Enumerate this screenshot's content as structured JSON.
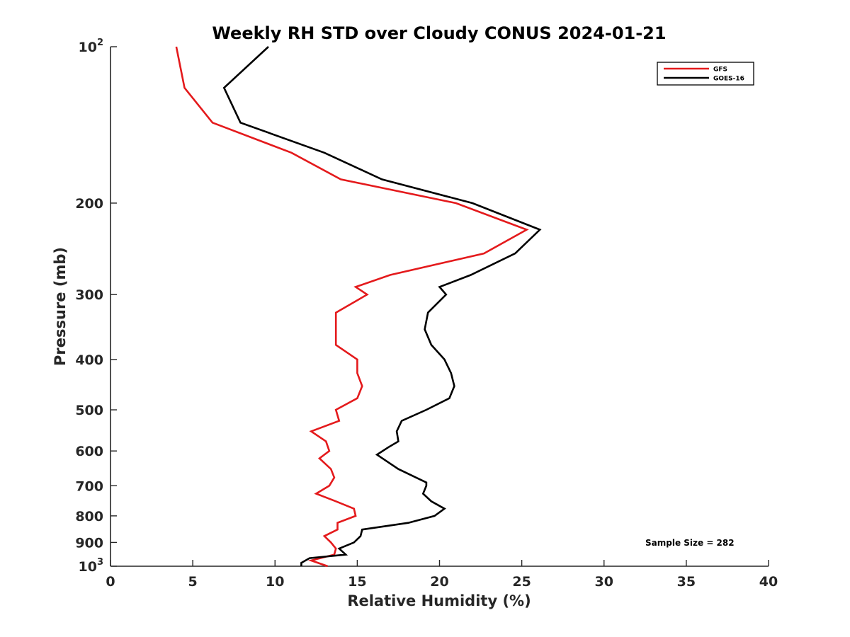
{
  "chart_data": {
    "type": "line",
    "title": "Weekly RH STD over Cloudy CONUS 2024-01-21",
    "xlabel": "Relative Humidity (%)",
    "ylabel": "Pressure (mb)",
    "xlim": [
      0,
      40
    ],
    "ylim": [
      100,
      1000
    ],
    "y_scale": "log",
    "y_reversed": true,
    "grid": false,
    "legend_position": "top-right",
    "x_ticks": [
      0,
      5,
      10,
      15,
      20,
      25,
      30,
      35,
      40
    ],
    "y_ticks": [
      {
        "value": 100,
        "label": "10",
        "sup": "2"
      },
      {
        "value": 200,
        "label": "200",
        "sup": ""
      },
      {
        "value": 300,
        "label": "300",
        "sup": ""
      },
      {
        "value": 400,
        "label": "400",
        "sup": ""
      },
      {
        "value": 500,
        "label": "500",
        "sup": ""
      },
      {
        "value": 600,
        "label": "600",
        "sup": ""
      },
      {
        "value": 700,
        "label": "700",
        "sup": ""
      },
      {
        "value": 800,
        "label": "800",
        "sup": ""
      },
      {
        "value": 900,
        "label": "900",
        "sup": ""
      },
      {
        "value": 1000,
        "label": "10",
        "sup": "3"
      }
    ],
    "series": [
      {
        "name": "GFS",
        "color": "#e41a1c",
        "points": [
          [
            4.0,
            100
          ],
          [
            4.5,
            120
          ],
          [
            6.2,
            140
          ],
          [
            11.0,
            160
          ],
          [
            14.0,
            180
          ],
          [
            21.0,
            200
          ],
          [
            25.3,
            225
          ],
          [
            22.7,
            250
          ],
          [
            17.0,
            275
          ],
          [
            14.9,
            290
          ],
          [
            15.6,
            300
          ],
          [
            13.7,
            325
          ],
          [
            13.7,
            350
          ],
          [
            13.7,
            375
          ],
          [
            15.0,
            400
          ],
          [
            15.0,
            425
          ],
          [
            15.3,
            450
          ],
          [
            15.0,
            475
          ],
          [
            13.7,
            500
          ],
          [
            13.9,
            525
          ],
          [
            12.2,
            550
          ],
          [
            13.1,
            575
          ],
          [
            13.3,
            600
          ],
          [
            12.7,
            620
          ],
          [
            13.4,
            650
          ],
          [
            13.6,
            675
          ],
          [
            13.3,
            700
          ],
          [
            12.5,
            725
          ],
          [
            13.7,
            750
          ],
          [
            14.8,
            775
          ],
          [
            14.9,
            800
          ],
          [
            13.8,
            825
          ],
          [
            13.8,
            850
          ],
          [
            13.0,
            875
          ],
          [
            13.4,
            900
          ],
          [
            13.7,
            925
          ],
          [
            13.6,
            950
          ],
          [
            12.2,
            975
          ],
          [
            13.2,
            1000
          ]
        ]
      },
      {
        "name": "GOES-16",
        "color": "#000000",
        "points": [
          [
            9.6,
            100
          ],
          [
            6.9,
            120
          ],
          [
            7.9,
            140
          ],
          [
            13.0,
            160
          ],
          [
            16.5,
            180
          ],
          [
            22.0,
            200
          ],
          [
            26.1,
            225
          ],
          [
            24.6,
            250
          ],
          [
            21.9,
            275
          ],
          [
            20.0,
            290
          ],
          [
            20.4,
            300
          ],
          [
            19.3,
            325
          ],
          [
            19.1,
            350
          ],
          [
            19.5,
            375
          ],
          [
            20.3,
            400
          ],
          [
            20.7,
            425
          ],
          [
            20.9,
            450
          ],
          [
            20.6,
            475
          ],
          [
            19.2,
            500
          ],
          [
            17.7,
            525
          ],
          [
            17.4,
            550
          ],
          [
            17.5,
            575
          ],
          [
            16.9,
            590
          ],
          [
            16.2,
            610
          ],
          [
            17.5,
            650
          ],
          [
            19.2,
            690
          ],
          [
            19.2,
            700
          ],
          [
            19.0,
            725
          ],
          [
            19.5,
            750
          ],
          [
            20.3,
            775
          ],
          [
            19.7,
            800
          ],
          [
            18.1,
            825
          ],
          [
            15.3,
            850
          ],
          [
            15.2,
            875
          ],
          [
            14.8,
            900
          ],
          [
            13.9,
            925
          ],
          [
            14.3,
            950
          ],
          [
            12.1,
            965
          ],
          [
            11.6,
            985
          ],
          [
            11.6,
            1000
          ]
        ]
      }
    ],
    "annotations": [
      {
        "text": "Sample Size = 282"
      }
    ]
  }
}
